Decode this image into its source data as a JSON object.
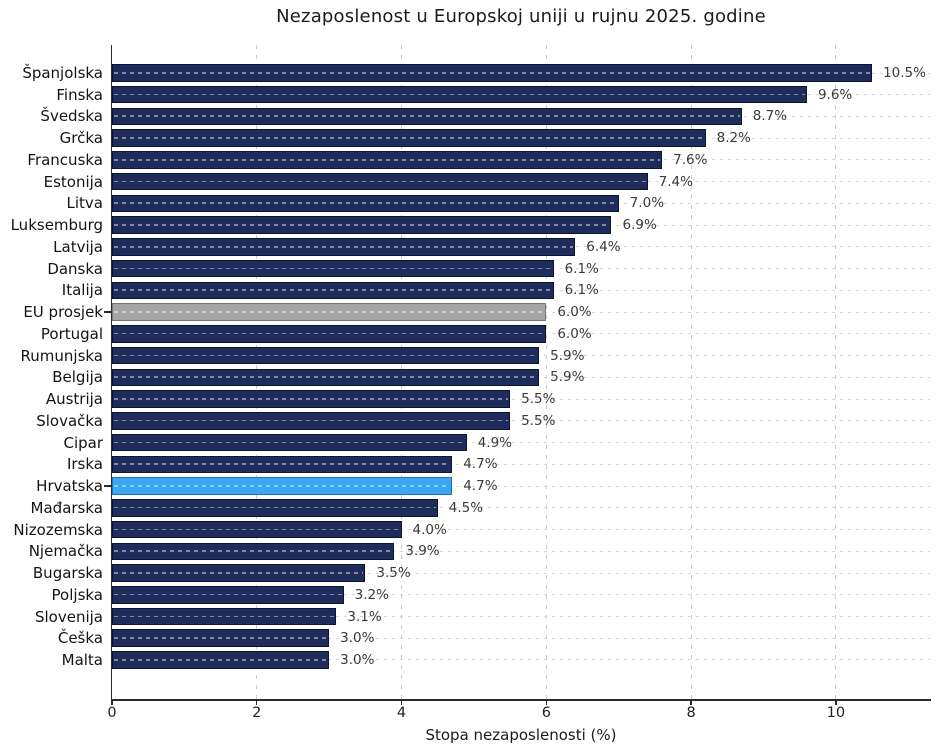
{
  "title": "Nezaposlenost u Europskoj uniji u rujnu 2025. godine",
  "colors": {
    "bar_navy": "#1e2c5c",
    "bar_navy_edge": "#0c1430",
    "bar_blue": "#3ba6f2",
    "bar_blue_edge": "#1b72b8",
    "bar_gray": "#a5a5a5",
    "bar_gray_edge": "#767676",
    "grid": "#cccccc",
    "axis": "#2a2a2a",
    "title_text": "#1b1b1b",
    "value_text": "#3a3a3a"
  },
  "chart_data": {
    "type": "bar",
    "orientation": "horizontal",
    "title": "Nezaposlenost u Europskoj uniji u rujnu 2025. godine",
    "xlabel": "Stopa nezaposlenosti (%)",
    "xlim": [
      0,
      11.3
    ],
    "grid": true,
    "legend": "none",
    "highlight_country": "Hrvatska",
    "average_row": "EU prosjek",
    "xticks": [
      {
        "value": 0,
        "label": "0"
      },
      {
        "value": 2,
        "label": "2"
      },
      {
        "value": 4,
        "label": "4"
      },
      {
        "value": 6,
        "label": "6"
      },
      {
        "value": 8,
        "label": "8"
      },
      {
        "value": 10,
        "label": "10"
      }
    ],
    "items": [
      {
        "label": "Španjolska",
        "value": 10.5,
        "display": "10.5%",
        "color": "navy"
      },
      {
        "label": "Finska",
        "value": 9.6,
        "display": "9.6%",
        "color": "navy"
      },
      {
        "label": "Švedska",
        "value": 8.7,
        "display": "8.7%",
        "color": "navy"
      },
      {
        "label": "Grčka",
        "value": 8.2,
        "display": "8.2%",
        "color": "navy"
      },
      {
        "label": "Francuska",
        "value": 7.6,
        "display": "7.6%",
        "color": "navy"
      },
      {
        "label": "Estonija",
        "value": 7.4,
        "display": "7.4%",
        "color": "navy"
      },
      {
        "label": "Litva",
        "value": 7.0,
        "display": "7.0%",
        "color": "navy"
      },
      {
        "label": "Luksemburg",
        "value": 6.9,
        "display": "6.9%",
        "color": "navy"
      },
      {
        "label": "Latvija",
        "value": 6.4,
        "display": "6.4%",
        "color": "navy"
      },
      {
        "label": "Danska",
        "value": 6.1,
        "display": "6.1%",
        "color": "navy"
      },
      {
        "label": "Italija",
        "value": 6.1,
        "display": "6.1%",
        "color": "navy"
      },
      {
        "label": "EU prosjek",
        "value": 6.0,
        "display": "6.0%",
        "color": "gray"
      },
      {
        "label": "Portugal",
        "value": 6.0,
        "display": "6.0%",
        "color": "navy"
      },
      {
        "label": "Rumunjska",
        "value": 5.9,
        "display": "5.9%",
        "color": "navy"
      },
      {
        "label": "Belgija",
        "value": 5.9,
        "display": "5.9%",
        "color": "navy"
      },
      {
        "label": "Austrija",
        "value": 5.5,
        "display": "5.5%",
        "color": "navy"
      },
      {
        "label": "Slovačka",
        "value": 5.5,
        "display": "5.5%",
        "color": "navy"
      },
      {
        "label": "Cipar",
        "value": 4.9,
        "display": "4.9%",
        "color": "navy"
      },
      {
        "label": "Irska",
        "value": 4.7,
        "display": "4.7%",
        "color": "navy"
      },
      {
        "label": "Hrvatska",
        "value": 4.7,
        "display": "4.7%",
        "color": "blue"
      },
      {
        "label": "Mađarska",
        "value": 4.5,
        "display": "4.5%",
        "color": "navy"
      },
      {
        "label": "Nizozemska",
        "value": 4.0,
        "display": "4.0%",
        "color": "navy"
      },
      {
        "label": "Njemačka",
        "value": 3.9,
        "display": "3.9%",
        "color": "navy"
      },
      {
        "label": "Bugarska",
        "value": 3.5,
        "display": "3.5%",
        "color": "navy"
      },
      {
        "label": "Poljska",
        "value": 3.2,
        "display": "3.2%",
        "color": "navy"
      },
      {
        "label": "Slovenija",
        "value": 3.1,
        "display": "3.1%",
        "color": "navy"
      },
      {
        "label": "Češka",
        "value": 3.0,
        "display": "3.0%",
        "color": "navy"
      },
      {
        "label": "Malta",
        "value": 3.0,
        "display": "3.0%",
        "color": "navy"
      }
    ]
  }
}
